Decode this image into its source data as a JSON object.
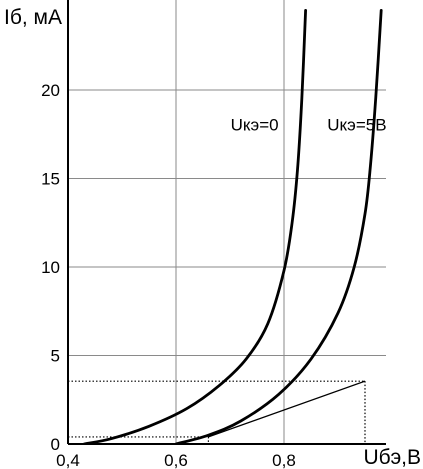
{
  "chart_data": {
    "type": "line",
    "xlabel": "Uбэ,В",
    "ylabel": "Iб, мА",
    "xlim": [
      0.4,
      1.0
    ],
    "ylim": [
      0,
      24
    ],
    "x_ticks": [
      0.4,
      0.6,
      0.8
    ],
    "x_tick_labels": [
      "0,4",
      "0,6",
      "0,8"
    ],
    "y_ticks": [
      0,
      5,
      10,
      15,
      20
    ],
    "y_tick_labels": [
      "0",
      "5",
      "10",
      "15",
      "20"
    ],
    "grid": true,
    "series": [
      {
        "name": "Uкэ=0",
        "label_at": [
          0.79,
          17.7
        ],
        "x": [
          0.43,
          0.48,
          0.55,
          0.62,
          0.68,
          0.73,
          0.77,
          0.8,
          0.815,
          0.825,
          0.833,
          0.84
        ],
        "y": [
          0.0,
          0.3,
          1.0,
          2.0,
          3.3,
          4.8,
          6.8,
          9.8,
          12.5,
          15.5,
          19.5,
          24.5
        ]
      },
      {
        "name": "Uкэ=5В",
        "label_at": [
          0.99,
          17.7
        ],
        "x": [
          0.6,
          0.66,
          0.72,
          0.79,
          0.85,
          0.9,
          0.93,
          0.95,
          0.96,
          0.97,
          0.98
        ],
        "y": [
          0.0,
          0.5,
          1.3,
          2.8,
          4.8,
          7.4,
          10.0,
          13.0,
          15.7,
          19.6,
          24.5
        ]
      }
    ],
    "annotations": {
      "dotted_guides": [
        {
          "x": 0.66,
          "y": 0.4
        },
        {
          "x": 0.95,
          "y": 3.55
        }
      ],
      "tangent_line": {
        "from": [
          0.66,
          0.4
        ],
        "to": [
          0.95,
          3.55
        ]
      }
    }
  }
}
